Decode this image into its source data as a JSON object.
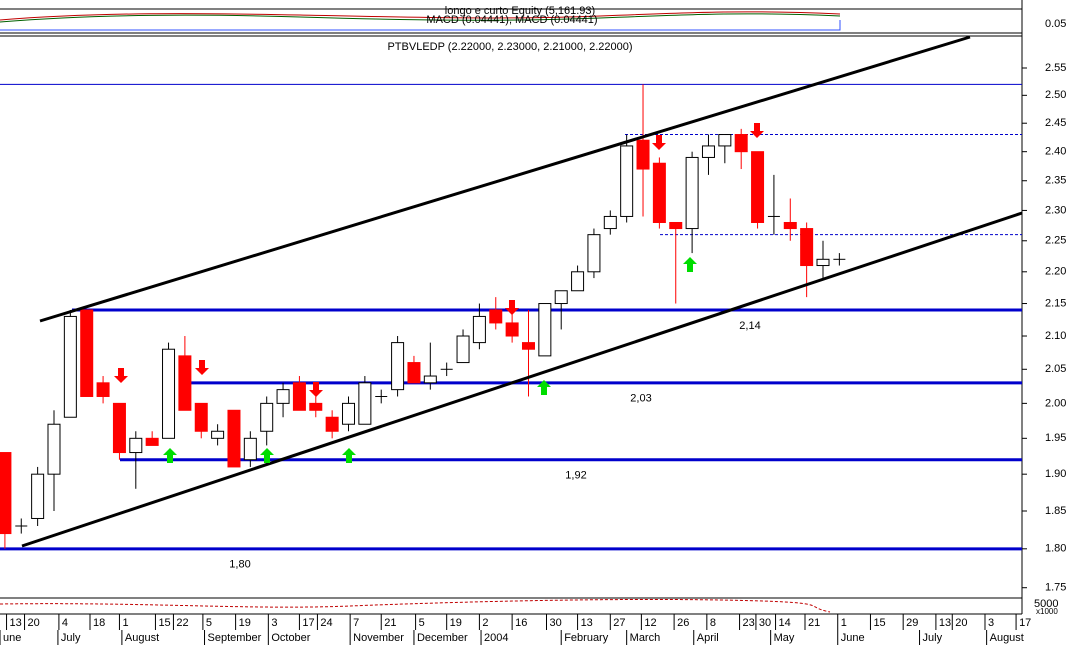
{
  "chart_data": [
    {
      "type": "candlestick",
      "title": "PTBVLEDP (2.22000, 2.23000, 2.21000, 2.22000)",
      "open": [
        1.93,
        1.83,
        1.84,
        1.9,
        1.98,
        2.14,
        2.03,
        2.0,
        1.93,
        1.95,
        1.95,
        2.07,
        2.0,
        1.95,
        1.99,
        1.92,
        1.96,
        2.0,
        2.03,
        2.0,
        1.98,
        1.97,
        1.97,
        2.01,
        2.02,
        2.06,
        2.03,
        2.05,
        2.06,
        2.09,
        2.14,
        2.12,
        2.09,
        2.07,
        2.15,
        2.17,
        2.2,
        2.27,
        2.29,
        2.42,
        2.38,
        2.28,
        2.27,
        2.39,
        2.41,
        2.43,
        2.4,
        2.29,
        2.28,
        2.27,
        2.21,
        2.22
      ],
      "high": [
        1.93,
        1.84,
        1.91,
        1.99,
        2.14,
        2.14,
        2.04,
        2.0,
        1.96,
        1.96,
        2.09,
        2.1,
        2.0,
        1.97,
        1.99,
        1.96,
        2.01,
        2.03,
        2.04,
        2.01,
        1.99,
        2.01,
        2.04,
        2.02,
        2.1,
        2.07,
        2.09,
        2.06,
        2.11,
        2.15,
        2.16,
        2.14,
        2.14,
        2.15,
        2.17,
        2.21,
        2.27,
        2.3,
        2.43,
        2.52,
        2.39,
        2.28,
        2.4,
        2.43,
        2.43,
        2.44,
        2.4,
        2.36,
        2.32,
        2.28,
        2.25,
        2.23
      ],
      "low": [
        1.8,
        1.82,
        1.83,
        1.85,
        1.98,
        2.01,
        2.0,
        1.92,
        1.88,
        1.94,
        1.95,
        1.99,
        1.95,
        1.94,
        1.91,
        1.91,
        1.94,
        1.98,
        1.99,
        1.98,
        1.95,
        1.96,
        1.97,
        2.0,
        2.01,
        2.03,
        2.02,
        2.04,
        2.06,
        2.08,
        2.11,
        2.09,
        2.01,
        2.07,
        2.11,
        2.17,
        2.19,
        2.26,
        2.28,
        2.29,
        2.27,
        2.15,
        2.23,
        2.36,
        2.38,
        2.37,
        2.27,
        2.26,
        2.25,
        2.16,
        2.19,
        2.21
      ],
      "close": [
        1.82,
        1.83,
        1.9,
        1.97,
        2.13,
        2.01,
        2.01,
        1.93,
        1.95,
        1.94,
        2.08,
        1.99,
        1.96,
        1.96,
        1.91,
        1.95,
        2.0,
        2.02,
        1.99,
        1.99,
        1.96,
        2.0,
        2.03,
        2.01,
        2.09,
        2.03,
        2.04,
        2.05,
        2.1,
        2.13,
        2.12,
        2.1,
        2.08,
        2.15,
        2.17,
        2.2,
        2.26,
        2.29,
        2.41,
        2.37,
        2.28,
        2.27,
        2.39,
        2.41,
        2.43,
        2.4,
        2.28,
        2.29,
        2.27,
        2.21,
        2.22,
        2.22
      ],
      "up_color": "#ffffff",
      "down_color": "#ff0000",
      "log_y": true,
      "ylim": [
        1.737,
        2.606
      ],
      "yticks": [
        2.55,
        {
          "value": 2.5,
          "label": "2.50"
        },
        2.45,
        {
          "value": 2.4,
          "label": "2.40"
        },
        2.35,
        {
          "value": 2.3,
          "label": "2.30"
        },
        2.25,
        {
          "value": 2.2,
          "label": "2.20"
        },
        2.15,
        {
          "value": 2.1,
          "label": "2.10"
        },
        2.05,
        {
          "value": 2.0,
          "label": "2.00"
        },
        1.95,
        {
          "value": 1.9,
          "label": "1.90"
        },
        1.85,
        {
          "value": 1.8,
          "label": "1.80"
        },
        1.75
      ],
      "xlim": [
        -0.3,
        62.04
      ],
      "xticks": [
        {
          "value": 0.1,
          "label": "13"
        },
        {
          "value": 1.2,
          "label": "20"
        },
        {
          "value": 3.3,
          "label": "4"
        },
        {
          "value": 5.2,
          "label": "18"
        },
        {
          "value": 7.0,
          "label": "1"
        },
        {
          "value": 9.2,
          "label": "15"
        },
        {
          "value": 10.3,
          "label": "22"
        },
        {
          "value": 12.1,
          "label": "5"
        },
        {
          "value": 14.1,
          "label": "19"
        },
        {
          "value": 16.1,
          "label": "3"
        },
        {
          "value": 18.0,
          "label": "17"
        },
        {
          "value": 19.1,
          "label": "24"
        },
        {
          "value": 21.1,
          "label": "7"
        },
        {
          "value": 23.0,
          "label": "21"
        },
        {
          "value": 25.1,
          "label": "5"
        },
        {
          "value": 27.0,
          "label": "19"
        },
        {
          "value": 29.0,
          "label": "2"
        },
        {
          "value": 31.0,
          "label": "16"
        },
        {
          "value": 33.1,
          "label": "30"
        },
        {
          "value": 35.0,
          "label": "13"
        },
        {
          "value": 37.0,
          "label": "27"
        },
        {
          "value": 38.9,
          "label": "12"
        },
        {
          "value": 40.9,
          "label": "26"
        },
        {
          "value": 42.9,
          "label": "8"
        },
        {
          "value": 44.9,
          "label": "23"
        },
        {
          "value": 45.9,
          "label": "30"
        },
        {
          "value": 47.1,
          "label": "14"
        },
        {
          "value": 48.9,
          "label": "21"
        },
        {
          "value": 50.9,
          "label": "1"
        },
        {
          "value": 52.9,
          "label": "15"
        },
        {
          "value": 54.9,
          "label": "29"
        },
        {
          "value": 56.9,
          "label": "13"
        },
        {
          "value": 57.9,
          "label": "20"
        },
        {
          "value": 59.9,
          "label": "3"
        },
        {
          "value": 61.8,
          "label": "17"
        }
      ],
      "month_ticks": [
        {
          "value": -0.3,
          "label": "une"
        },
        {
          "value": 3.24,
          "label": "July"
        },
        {
          "value": 7.15,
          "label": "August"
        },
        {
          "value": 12.2,
          "label": "September"
        },
        {
          "value": 16.1,
          "label": "October"
        },
        {
          "value": 21.1,
          "label": "November"
        },
        {
          "value": 25.0,
          "label": "December"
        },
        {
          "value": 29.1,
          "label": "2004"
        },
        {
          "value": 34.0,
          "label": "February"
        },
        {
          "value": 38.0,
          "label": "March"
        },
        {
          "value": 42.1,
          "label": "April"
        },
        {
          "value": 46.8,
          "label": "May"
        },
        {
          "value": 50.9,
          "label": "June"
        },
        {
          "value": 55.9,
          "label": "July"
        },
        {
          "value": 60.0,
          "label": "August"
        }
      ],
      "levels": [
        {
          "value": 1.8,
          "label": "1,80"
        },
        {
          "value": 1.92,
          "label": "1,92"
        },
        {
          "value": 2.03,
          "label": "2,03"
        },
        {
          "value": 2.14,
          "label": "2,14"
        }
      ],
      "reference_lines": [
        2.52,
        2.43,
        2.26
      ]
    }
  ],
  "indicator_panel": {
    "title": "longo e curto Equity (5,161.93)",
    "subtitle": "MACD (0.04441), MACD (0.04441)",
    "tick": "0.05"
  },
  "volume_panel": {
    "tick": "5000",
    "unit": "x1000"
  }
}
